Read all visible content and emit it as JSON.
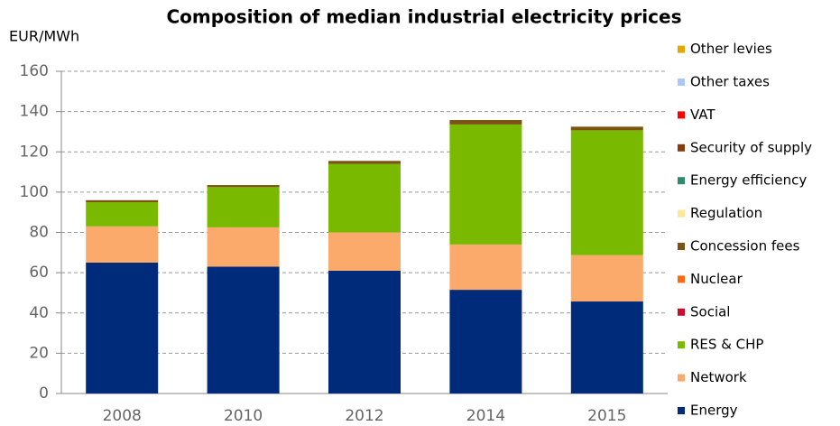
{
  "chart_data": {
    "type": "bar",
    "stacked": true,
    "title": "Composition of median industrial electricity prices",
    "y_label": "EUR/MWh",
    "categories": [
      "2008",
      "2010",
      "2012",
      "2014",
      "2015"
    ],
    "series": [
      {
        "name": "Energy",
        "color": "#002a7a",
        "values": [
          65,
          63,
          61,
          51.5,
          45.7
        ]
      },
      {
        "name": "Network",
        "color": "#fbaa6c",
        "values": [
          18,
          19.5,
          19,
          22.5,
          23
        ]
      },
      {
        "name": "RES & CHP",
        "color": "#79b900",
        "values": [
          12,
          20,
          34,
          59.6,
          62
        ]
      },
      {
        "name": "Social",
        "color": "#c8102e",
        "values": [
          0,
          0,
          0,
          0,
          0
        ]
      },
      {
        "name": "Nuclear",
        "color": "#ff6a10",
        "values": [
          0,
          0,
          0,
          0,
          0
        ]
      },
      {
        "name": "Concession fees",
        "color": "#7a5410",
        "values": [
          1,
          1,
          1.5,
          2.2,
          1.8
        ]
      },
      {
        "name": "Regulation",
        "color": "#ffe699",
        "values": [
          0,
          0,
          0,
          0,
          0
        ]
      },
      {
        "name": "Energy efficiency",
        "color": "#2e8b6e",
        "values": [
          0,
          0,
          0,
          0,
          0
        ]
      },
      {
        "name": "Security of supply",
        "color": "#843c0c",
        "values": [
          0,
          0,
          0,
          0,
          0
        ]
      },
      {
        "name": "VAT",
        "color": "#ff0000",
        "values": [
          0,
          0,
          0,
          0,
          0
        ]
      },
      {
        "name": "Other taxes",
        "color": "#a9c8f5",
        "values": [
          0,
          0,
          0,
          0,
          0
        ]
      },
      {
        "name": "Other levies",
        "color": "#e6a800",
        "values": [
          0,
          0,
          0,
          0,
          0
        ]
      }
    ],
    "ylim": [
      0,
      160
    ],
    "yticks": [
      0,
      20,
      40,
      60,
      80,
      100,
      120,
      140,
      160
    ],
    "grid": true
  }
}
